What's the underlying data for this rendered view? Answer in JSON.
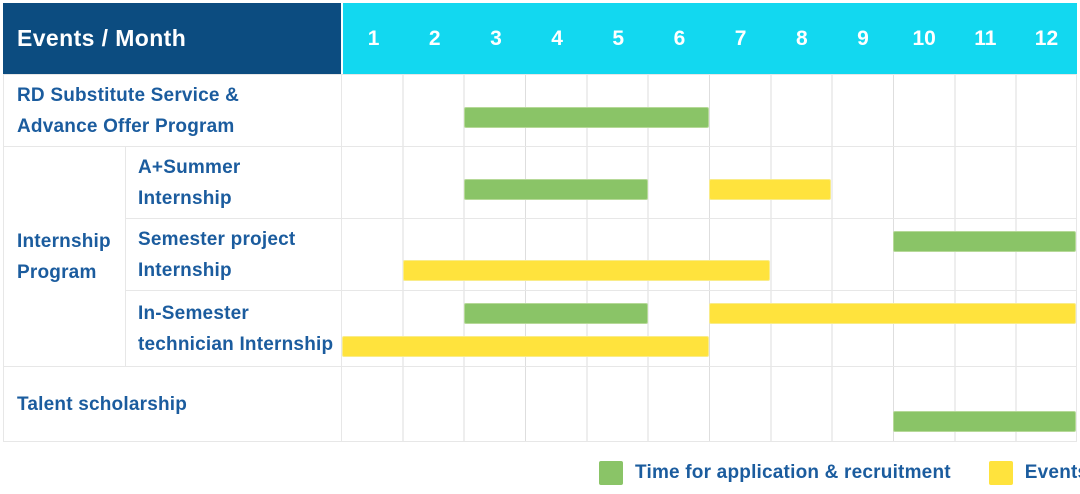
{
  "colors": {
    "navy": "#0C4C80",
    "cyan": "#12D8F0",
    "green": "#8AC467",
    "yellow": "#FFE33D",
    "blue": "#1B5C9E",
    "line": "#E7E7E7",
    "gridline": "#DEDEDE"
  },
  "table": {
    "corner_label": "Events / Month",
    "months": [
      "1",
      "2",
      "3",
      "4",
      "5",
      "6",
      "7",
      "8",
      "9",
      "10",
      "11",
      "12"
    ],
    "group_label": "Internship Program",
    "group_label_lines": [
      "Internship",
      "Program"
    ]
  },
  "legend": {
    "items": [
      {
        "kind": "application",
        "color": "#8AC467",
        "label": "Time for application & recruitment"
      },
      {
        "kind": "event",
        "color": "#FFE33D",
        "label": "Events"
      }
    ]
  },
  "chart_data": {
    "type": "gantt",
    "x_unit": "month",
    "x_range": [
      1,
      12
    ],
    "x_ticks": [
      1,
      2,
      3,
      4,
      5,
      6,
      7,
      8,
      9,
      10,
      11,
      12
    ],
    "bar_kinds": {
      "application": {
        "legend_label": "Time for application & recruitment",
        "color": "#8AC467"
      },
      "event": {
        "legend_label": "Events",
        "color": "#FFE33D"
      }
    },
    "rows": [
      {
        "label": "RD Substitute Service & Advance Offer Program",
        "label_lines": [
          "RD Substitute Service &",
          "Advance Offer Program"
        ],
        "group": null,
        "bars": [
          {
            "kind": "application",
            "start_month": 3,
            "end_month": 6,
            "lane": "middle"
          }
        ]
      },
      {
        "label": "A+Summer Internship",
        "label_lines": [
          "A+Summer",
          "Internship"
        ],
        "group": "Internship Program",
        "bars": [
          {
            "kind": "application",
            "start_month": 3,
            "end_month": 5,
            "lane": "middle"
          },
          {
            "kind": "event",
            "start_month": 7,
            "end_month": 8,
            "lane": "middle"
          }
        ]
      },
      {
        "label": "Semester project Internship",
        "label_lines": [
          "Semester project",
          "Internship"
        ],
        "group": "Internship Program",
        "bars": [
          {
            "kind": "application",
            "start_month": 10,
            "end_month": 12,
            "lane": "top"
          },
          {
            "kind": "event",
            "start_month": 2,
            "end_month": 7,
            "lane": "bottom"
          }
        ]
      },
      {
        "label": "In-Semester technician Internship",
        "label_lines": [
          "In-Semester",
          "technician Internship"
        ],
        "group": "Internship Program",
        "bars": [
          {
            "kind": "application",
            "start_month": 3,
            "end_month": 5,
            "lane": "top"
          },
          {
            "kind": "event",
            "start_month": 7,
            "end_month": 12,
            "lane": "top"
          },
          {
            "kind": "event",
            "start_month": 1,
            "end_month": 6,
            "lane": "bottom"
          }
        ]
      },
      {
        "label": "Talent scholarship",
        "label_lines": [
          "Talent scholarship"
        ],
        "group": null,
        "bars": [
          {
            "kind": "application",
            "start_month": 10,
            "end_month": 12,
            "lane": "bottom"
          }
        ]
      }
    ]
  }
}
